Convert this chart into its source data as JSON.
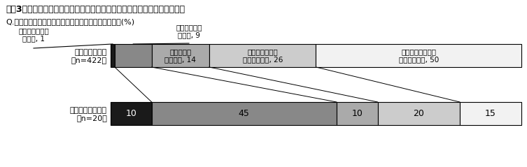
{
  "title": "図表3　前出の性別質問への違和感（アクセスパネル・世論調査協会会員）",
  "subtitle": "Q.あなたは、前の性別質問に違和感を感じましたか。(%)",
  "row1_label_line1": "アクセスパネル",
  "row1_label_line2": "（n=422）",
  "row2_label_line1": "世論調査協会会員",
  "row2_label_line2": "（n=20）",
  "values_row1": [
    1,
    9,
    14,
    26,
    50
  ],
  "values_row2": [
    10,
    45,
    10,
    20,
    15
  ],
  "bar_colors": [
    "#1a1a1a",
    "#888888",
    "#aaaaaa",
    "#cccccc",
    "#f2f2f2"
  ],
  "row1_inside_labels": [
    "",
    "",
    "どちらとも\nいえない, 14",
    "あまり違和感を\n感じなかった, 26",
    "まったく違和感を\n感じなかった, 50"
  ],
  "row1_inside_colors": [
    "white",
    "white",
    "black",
    "black",
    "black"
  ],
  "row2_inside_labels": [
    "10",
    "45",
    "10",
    "20",
    "15"
  ],
  "row2_inside_colors": [
    "white",
    "black",
    "black",
    "black",
    "black"
  ],
  "ann0_text": "とても違和感を\n感じた, 1",
  "ann1_text": "やや違和感を\n感じた, 9",
  "title_fontsize": 9,
  "subtitle_fontsize": 8,
  "label_fontsize": 8,
  "bar_fontsize": 7.5,
  "ann_fontsize": 7.5,
  "bar_edge_color": "#000000"
}
